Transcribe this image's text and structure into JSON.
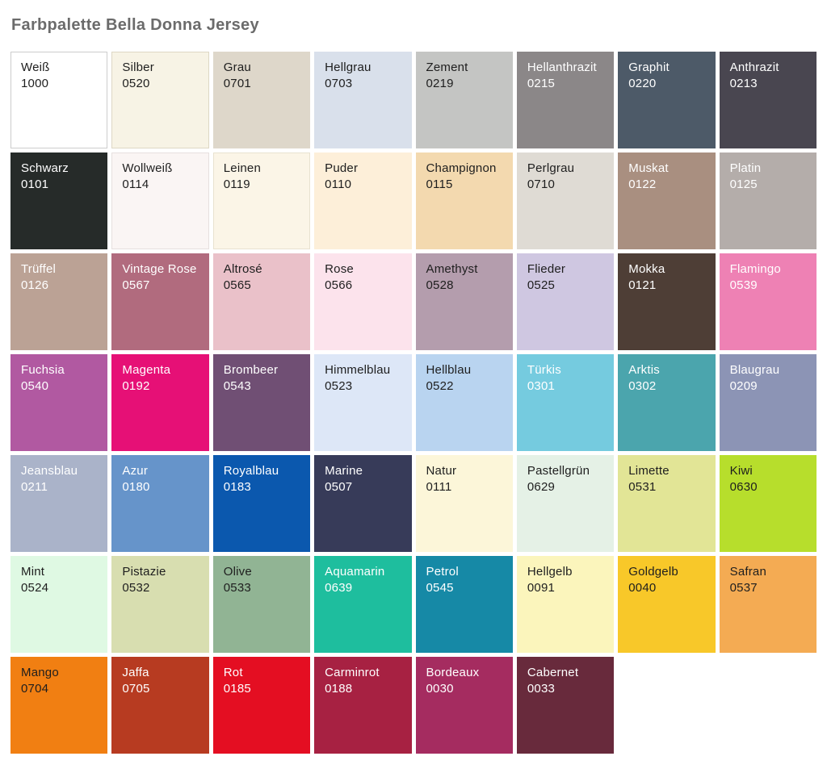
{
  "title": "Farbpalette Bella Donna Jersey",
  "page": {
    "background": "#ffffff",
    "title_color": "#6b6b6b",
    "dark_text_color": "#1e1e1e",
    "light_text_color": "#ffffff"
  },
  "palette": {
    "columns": 8,
    "swatches": [
      {
        "name": "Weiß",
        "code": "1000",
        "color": "#ffffff",
        "text": "dark",
        "border": "#cccccc"
      },
      {
        "name": "Silber",
        "code": "0520",
        "color": "#f7f3e5",
        "text": "dark",
        "border": "#ddd7c4"
      },
      {
        "name": "Grau",
        "code": "0701",
        "color": "#ded7ca",
        "text": "dark"
      },
      {
        "name": "Hellgrau",
        "code": "0703",
        "color": "#d9e0eb",
        "text": "dark"
      },
      {
        "name": "Zement",
        "code": "0219",
        "color": "#c4c5c3",
        "text": "dark"
      },
      {
        "name": "Hellanthrazit",
        "code": "0215",
        "color": "#8b8788",
        "text": "light"
      },
      {
        "name": "Graphit",
        "code": "0220",
        "color": "#4d5a68",
        "text": "light"
      },
      {
        "name": "Anthrazit",
        "code": "0213",
        "color": "#494650",
        "text": "light"
      },
      {
        "name": "Schwarz",
        "code": "0101",
        "color": "#262b29",
        "text": "light"
      },
      {
        "name": "Wollweiß",
        "code": "0114",
        "color": "#faf5f4",
        "text": "dark",
        "border": "#e6e0df"
      },
      {
        "name": "Leinen",
        "code": "0119",
        "color": "#fbf5e7",
        "text": "dark",
        "border": "#e8e2d0"
      },
      {
        "name": "Puder",
        "code": "0110",
        "color": "#fdefd9",
        "text": "dark"
      },
      {
        "name": "Champignon",
        "code": "0115",
        "color": "#f3d9af",
        "text": "dark"
      },
      {
        "name": "Perlgrau",
        "code": "0710",
        "color": "#dfdbd4",
        "text": "dark"
      },
      {
        "name": "Muskat",
        "code": "0122",
        "color": "#a98f80",
        "text": "light"
      },
      {
        "name": "Platin",
        "code": "0125",
        "color": "#b4adaa",
        "text": "light"
      },
      {
        "name": "Trüffel",
        "code": "0126",
        "color": "#bba295",
        "text": "light"
      },
      {
        "name": "Vintage Rose",
        "code": "0567",
        "color": "#b16b7e",
        "text": "light"
      },
      {
        "name": "Altrosé",
        "code": "0565",
        "color": "#eac1c9",
        "text": "dark"
      },
      {
        "name": "Rose",
        "code": "0566",
        "color": "#fce3ec",
        "text": "dark"
      },
      {
        "name": "Amethyst",
        "code": "0528",
        "color": "#b49dad",
        "text": "dark"
      },
      {
        "name": "Flieder",
        "code": "0525",
        "color": "#cfc7e1",
        "text": "dark"
      },
      {
        "name": "Mokka",
        "code": "0121",
        "color": "#4e3e36",
        "text": "light"
      },
      {
        "name": "Flamingo",
        "code": "0539",
        "color": "#ee81b4",
        "text": "light"
      },
      {
        "name": "Fuchsia",
        "code": "0540",
        "color": "#b159a1",
        "text": "light"
      },
      {
        "name": "Magenta",
        "code": "0192",
        "color": "#e61076",
        "text": "light"
      },
      {
        "name": "Brombeer",
        "code": "0543",
        "color": "#704f74",
        "text": "light"
      },
      {
        "name": "Himmelblau",
        "code": "0523",
        "color": "#dde7f7",
        "text": "dark"
      },
      {
        "name": "Hellblau",
        "code": "0522",
        "color": "#b9d4f0",
        "text": "dark"
      },
      {
        "name": "Türkis",
        "code": "0301",
        "color": "#75cbdf",
        "text": "light"
      },
      {
        "name": "Arktis",
        "code": "0302",
        "color": "#4ba5ad",
        "text": "light"
      },
      {
        "name": "Blaugrau",
        "code": "0209",
        "color": "#8c94b5",
        "text": "light"
      },
      {
        "name": "Jeansblau",
        "code": "0211",
        "color": "#aab3c9",
        "text": "light"
      },
      {
        "name": "Azur",
        "code": "0180",
        "color": "#6694ca",
        "text": "light"
      },
      {
        "name": "Royalblau",
        "code": "0183",
        "color": "#0b58ae",
        "text": "light"
      },
      {
        "name": "Marine",
        "code": "0507",
        "color": "#373b59",
        "text": "light"
      },
      {
        "name": "Natur",
        "code": "0111",
        "color": "#fcf6d9",
        "text": "dark"
      },
      {
        "name": "Pastellgrün",
        "code": "0629",
        "color": "#e5f1e6",
        "text": "dark"
      },
      {
        "name": "Limette",
        "code": "0531",
        "color": "#e2e596",
        "text": "dark"
      },
      {
        "name": "Kiwi",
        "code": "0630",
        "color": "#b7de2c",
        "text": "dark"
      },
      {
        "name": "Mint",
        "code": "0524",
        "color": "#dff9e3",
        "text": "dark"
      },
      {
        "name": "Pistazie",
        "code": "0532",
        "color": "#d8deb0",
        "text": "dark"
      },
      {
        "name": "Olive",
        "code": "0533",
        "color": "#91b494",
        "text": "dark"
      },
      {
        "name": "Aquamarin",
        "code": "0639",
        "color": "#1ebe9e",
        "text": "light"
      },
      {
        "name": "Petrol",
        "code": "0545",
        "color": "#1689a6",
        "text": "light"
      },
      {
        "name": "Hellgelb",
        "code": "0091",
        "color": "#fbf5bc",
        "text": "dark"
      },
      {
        "name": "Goldgelb",
        "code": "0040",
        "color": "#f8c829",
        "text": "dark"
      },
      {
        "name": "Safran",
        "code": "0537",
        "color": "#f4ab53",
        "text": "dark"
      },
      {
        "name": "Mango",
        "code": "0704",
        "color": "#f17f12",
        "text": "dark"
      },
      {
        "name": "Jaffa",
        "code": "0705",
        "color": "#b73b21",
        "text": "light"
      },
      {
        "name": "Rot",
        "code": "0185",
        "color": "#e40e22",
        "text": "light"
      },
      {
        "name": "Carminrot",
        "code": "0188",
        "color": "#a72142",
        "text": "light"
      },
      {
        "name": "Bordeaux",
        "code": "0030",
        "color": "#a52c60",
        "text": "light"
      },
      {
        "name": "Cabernet",
        "code": "0033",
        "color": "#682a3c",
        "text": "light"
      }
    ]
  }
}
